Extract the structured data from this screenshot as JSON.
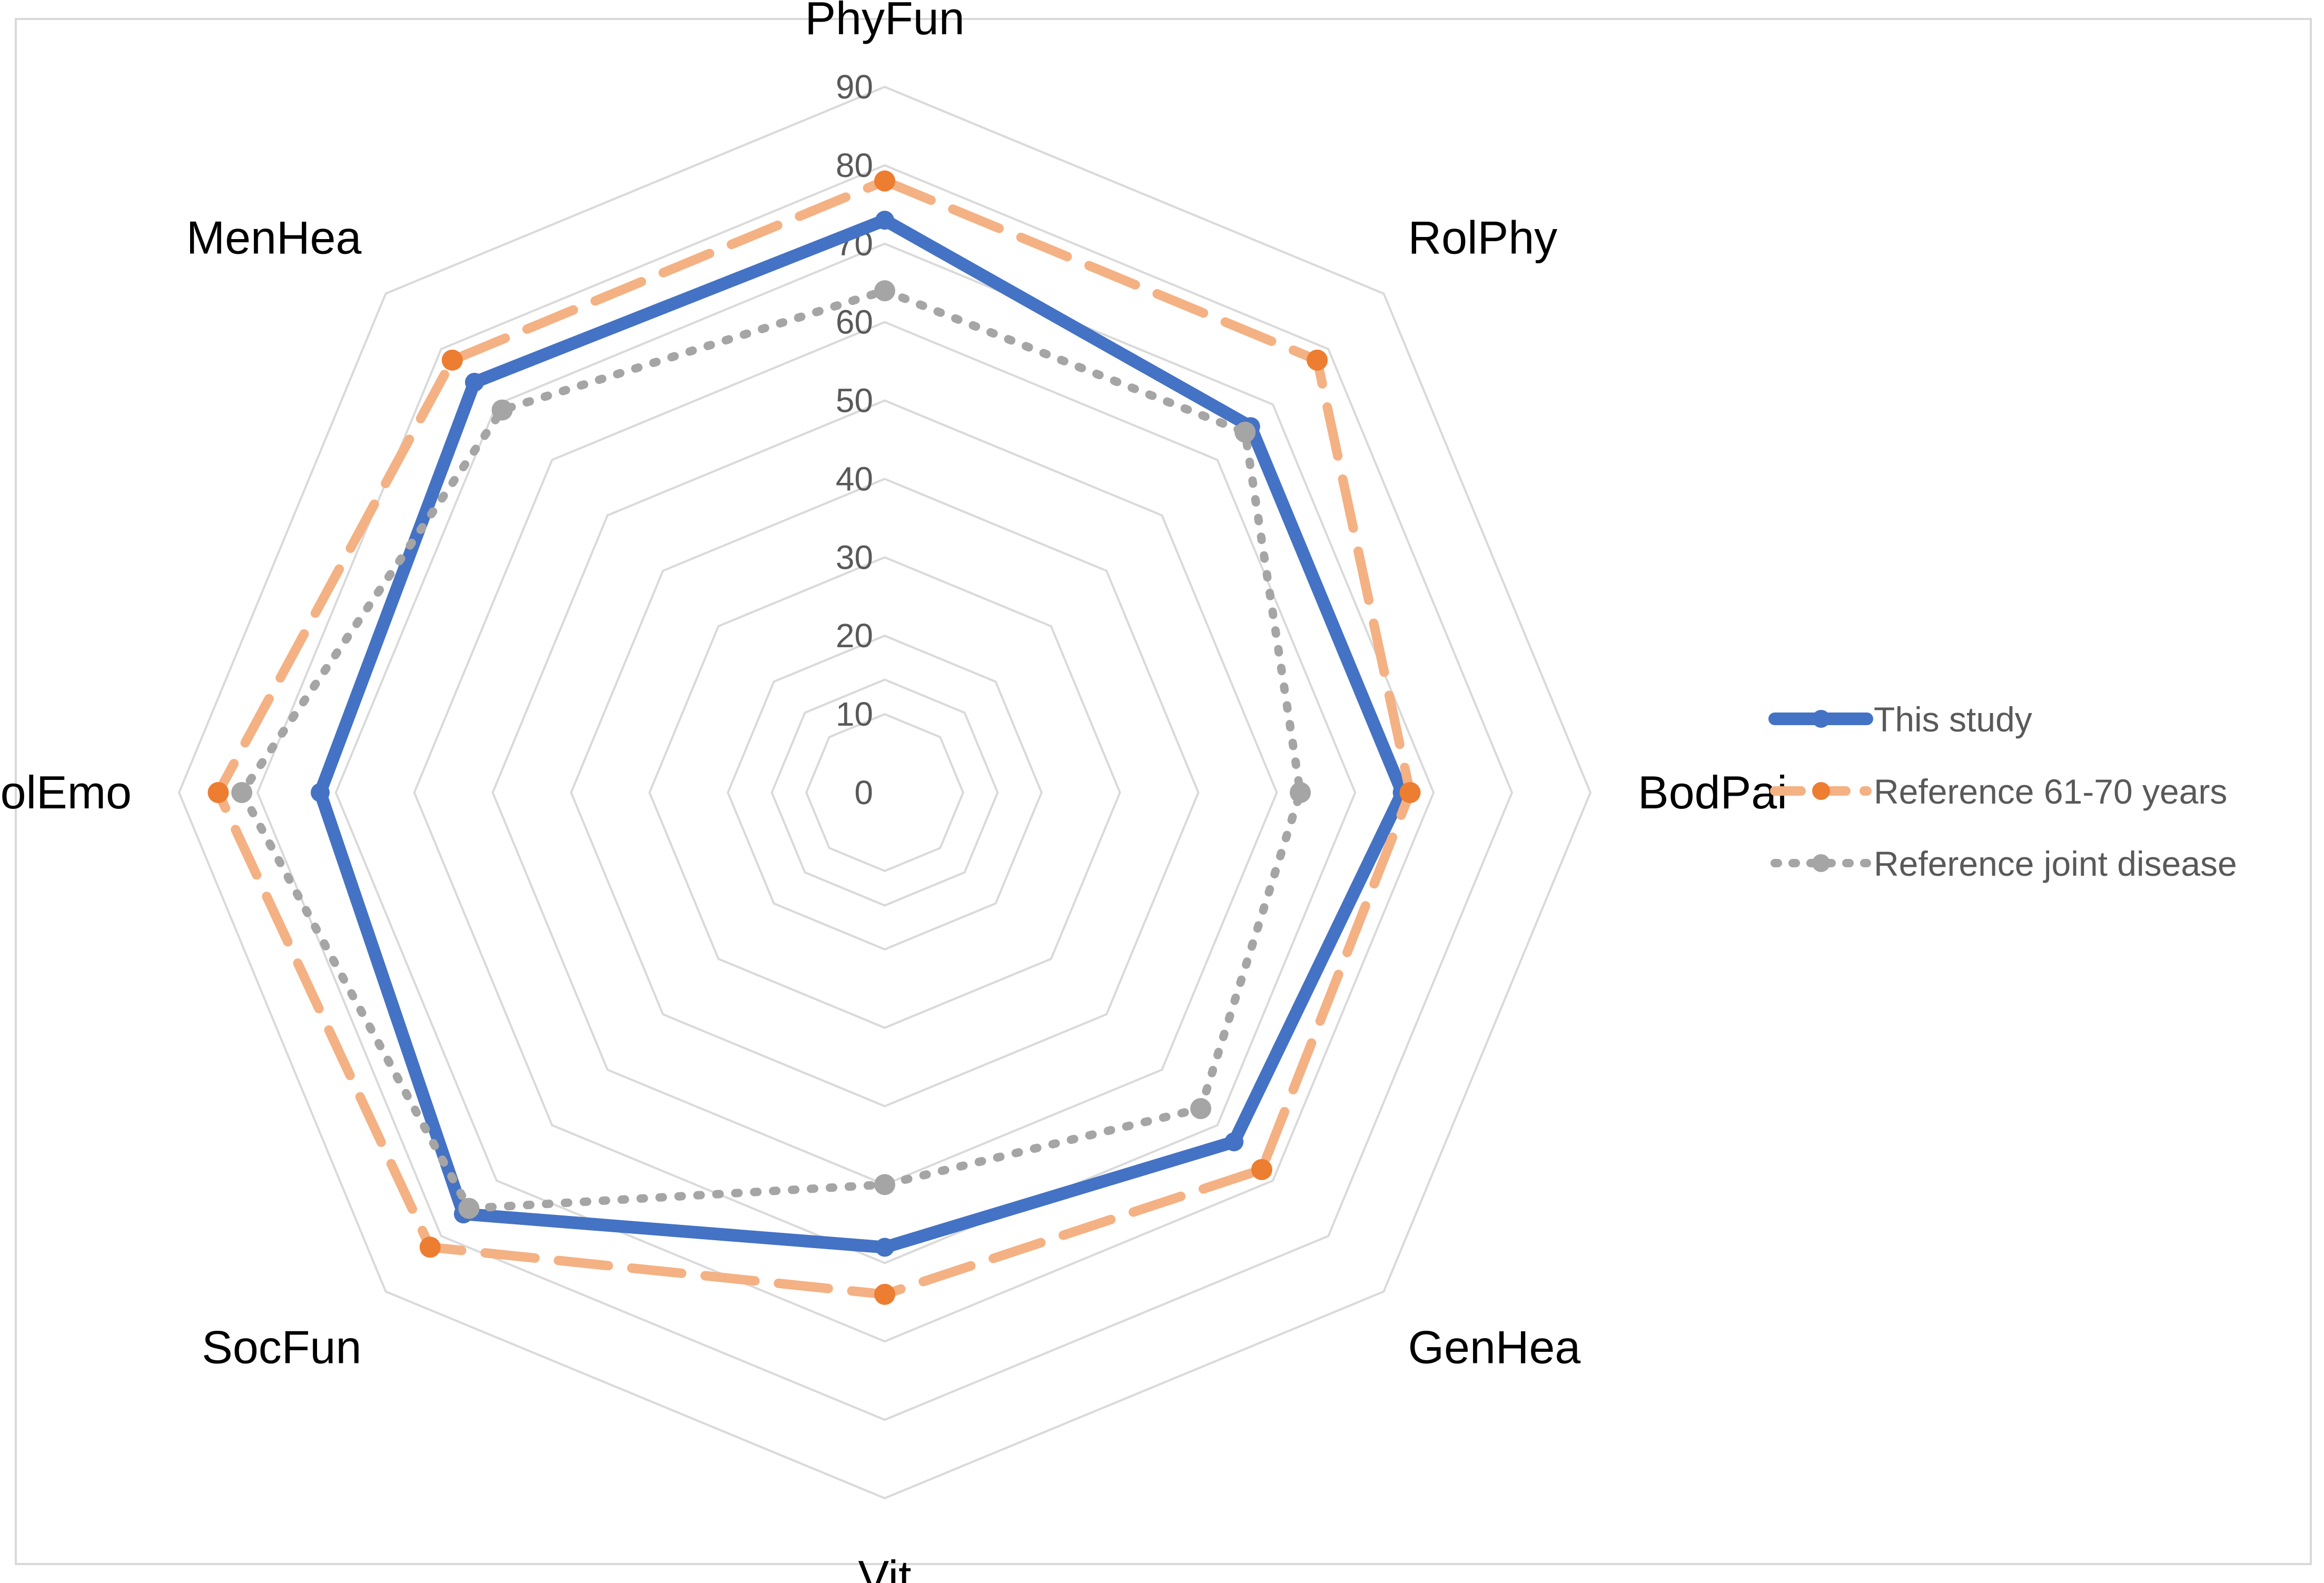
{
  "chart_data": {
    "type": "radar",
    "title": "",
    "categories": [
      "PhyFun",
      "RolPhy",
      "BodPai",
      "GenHea",
      "Vit",
      "SocFun",
      "RolEmo",
      "MenHea"
    ],
    "rlim": [
      0,
      90
    ],
    "ticks": [
      "0",
      "10",
      "20",
      "30",
      "40",
      "50",
      "60",
      "70",
      "80",
      "90"
    ],
    "grid": true,
    "legend_position": "right",
    "series": [
      {
        "name": "This study",
        "values": [
          73,
          66,
          66,
          63,
          58,
          76,
          72,
          74
        ],
        "color": "#4472C4",
        "line_style": "solid"
      },
      {
        "name": "Reference 61-70 years",
        "values": [
          78,
          78,
          67,
          68,
          64,
          82,
          85,
          78
        ],
        "color": "#ED7D31",
        "line_style": "dashed"
      },
      {
        "name": "Reference joint disease",
        "values": [
          64,
          65,
          53,
          57,
          50,
          75,
          82,
          69
        ],
        "color": "#A5A5A5",
        "line_style": "dotted"
      }
    ]
  }
}
